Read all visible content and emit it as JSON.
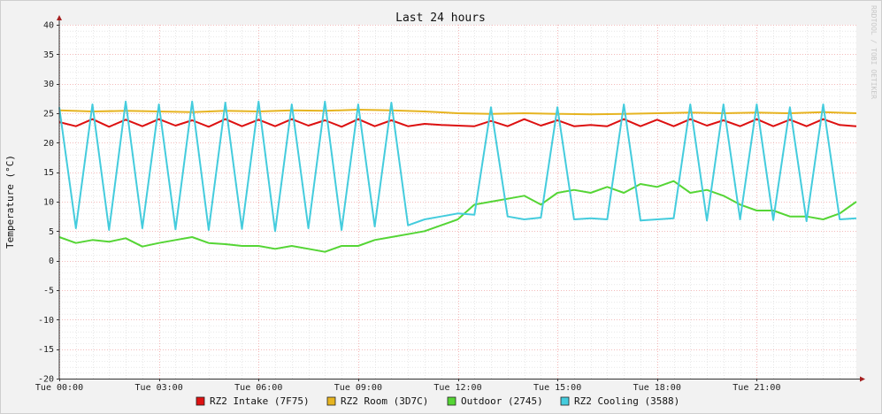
{
  "chart_data": {
    "type": "line",
    "title": "Last 24 hours",
    "ylabel": "Temperature (°C)",
    "xlabel": "",
    "watermark": "RRDTOOL / TOBI OETIKER",
    "x_range_hours": [
      0,
      24
    ],
    "ylim": [
      -20,
      40
    ],
    "y_ticks": [
      40,
      35,
      30,
      25,
      20,
      15,
      10,
      5,
      0,
      -5,
      -10,
      -15,
      -20
    ],
    "x_ticks": [
      {
        "hour": 0,
        "label": "Tue 00:00"
      },
      {
        "hour": 3,
        "label": "Tue 03:00"
      },
      {
        "hour": 6,
        "label": "Tue 06:00"
      },
      {
        "hour": 9,
        "label": "Tue 09:00"
      },
      {
        "hour": 12,
        "label": "Tue 12:00"
      },
      {
        "hour": 15,
        "label": "Tue 15:00"
      },
      {
        "hour": 18,
        "label": "Tue 18:00"
      },
      {
        "hour": 21,
        "label": "Tue 21:00"
      }
    ],
    "grid": true,
    "legend_position": "bottom",
    "colors": {
      "background": "#ffffff",
      "major_grid": "#f1a5a5",
      "minor_grid": "#d8d8d8",
      "axis": "#333333",
      "arrow": "#a52020"
    },
    "series": [
      {
        "name": "RZ2 Intake (7F75)",
        "color": "#dd1111",
        "x": [
          0.0,
          0.5,
          1.0,
          1.5,
          2.0,
          2.5,
          3.0,
          3.5,
          4.0,
          4.5,
          5.0,
          5.5,
          6.0,
          6.5,
          7.0,
          7.5,
          8.0,
          8.5,
          9.0,
          9.5,
          10.0,
          10.5,
          11.0,
          11.5,
          12.0,
          12.5,
          13.0,
          13.5,
          14.0,
          14.5,
          15.0,
          15.5,
          16.0,
          16.5,
          17.0,
          17.5,
          18.0,
          18.5,
          19.0,
          19.5,
          20.0,
          20.5,
          21.0,
          21.5,
          22.0,
          22.5,
          23.0,
          23.5,
          24.0
        ],
        "values": [
          23.5,
          22.8,
          24.0,
          22.7,
          23.9,
          22.8,
          24.0,
          22.9,
          23.8,
          22.7,
          24.0,
          22.8,
          23.9,
          22.8,
          24.0,
          22.9,
          23.8,
          22.7,
          24.0,
          22.8,
          23.8,
          22.8,
          23.2,
          23.0,
          22.9,
          22.8,
          23.7,
          22.8,
          24.0,
          22.9,
          23.8,
          22.8,
          23.0,
          22.8,
          24.0,
          22.8,
          23.9,
          22.8,
          24.0,
          22.9,
          23.8,
          22.8,
          24.0,
          22.8,
          23.9,
          22.8,
          24.0,
          23.0,
          22.8
        ]
      },
      {
        "name": "RZ2 Room (3D7C)",
        "color": "#e6b420",
        "x": [
          0.0,
          1.0,
          2.0,
          3.0,
          4.0,
          5.0,
          6.0,
          7.0,
          8.0,
          9.0,
          10.0,
          11.0,
          12.0,
          13.0,
          14.0,
          15.0,
          16.0,
          17.0,
          18.0,
          19.0,
          20.0,
          21.0,
          22.0,
          23.0,
          24.0
        ],
        "values": [
          25.5,
          25.3,
          25.4,
          25.3,
          25.2,
          25.4,
          25.3,
          25.5,
          25.4,
          25.6,
          25.5,
          25.3,
          25.0,
          24.9,
          25.0,
          24.9,
          24.8,
          24.9,
          25.0,
          25.1,
          25.0,
          25.1,
          25.0,
          25.2,
          25.0
        ]
      },
      {
        "name": "Outdoor (2745)",
        "color": "#55d535",
        "x": [
          0.0,
          0.5,
          1.0,
          1.5,
          2.0,
          2.5,
          3.0,
          3.5,
          4.0,
          4.5,
          5.0,
          5.5,
          6.0,
          6.5,
          7.0,
          7.5,
          8.0,
          8.5,
          9.0,
          9.5,
          10.0,
          10.5,
          11.0,
          11.5,
          12.0,
          12.5,
          13.0,
          13.5,
          14.0,
          14.5,
          15.0,
          15.5,
          16.0,
          16.5,
          17.0,
          17.5,
          18.0,
          18.5,
          19.0,
          19.5,
          20.0,
          20.5,
          21.0,
          21.5,
          22.0,
          22.5,
          23.0,
          23.5,
          24.0
        ],
        "values": [
          4.0,
          3.0,
          3.5,
          3.2,
          3.8,
          2.4,
          3.0,
          3.5,
          4.0,
          3.0,
          2.8,
          2.5,
          2.5,
          2.0,
          2.5,
          2.0,
          1.5,
          2.5,
          2.5,
          3.5,
          4.0,
          4.5,
          5.0,
          6.0,
          7.0,
          9.5,
          10.0,
          10.5,
          11.0,
          9.5,
          11.5,
          12.0,
          11.5,
          12.5,
          11.5,
          13.0,
          12.5,
          13.5,
          11.5,
          12.0,
          11.0,
          9.5,
          8.5,
          8.5,
          7.5,
          7.5,
          7.0,
          8.0,
          10.0
        ]
      },
      {
        "name": "RZ2 Cooling (3588)",
        "color": "#44ccdd",
        "x": [
          0.0,
          0.5,
          1.0,
          1.5,
          2.0,
          2.5,
          3.0,
          3.5,
          4.0,
          4.5,
          5.0,
          5.5,
          6.0,
          6.5,
          7.0,
          7.5,
          8.0,
          8.5,
          9.0,
          9.5,
          10.0,
          10.5,
          11.0,
          11.5,
          12.0,
          12.5,
          13.0,
          13.5,
          14.0,
          14.5,
          15.0,
          15.5,
          16.0,
          16.5,
          17.0,
          17.5,
          18.0,
          18.5,
          19.0,
          19.5,
          20.0,
          20.5,
          21.0,
          21.5,
          22.0,
          22.5,
          23.0,
          23.5,
          24.0
        ],
        "values": [
          26.0,
          5.5,
          26.5,
          5.2,
          27.0,
          5.5,
          26.5,
          5.3,
          27.0,
          5.2,
          26.8,
          5.4,
          27.0,
          5.0,
          26.5,
          5.5,
          27.0,
          5.2,
          26.5,
          5.8,
          26.8,
          6.0,
          7.0,
          7.5,
          8.0,
          7.8,
          26.0,
          7.5,
          7.0,
          7.3,
          26.0,
          7.0,
          7.2,
          7.0,
          26.5,
          6.8,
          7.0,
          7.2,
          26.5,
          6.8,
          26.5,
          7.0,
          26.5,
          6.9,
          26.0,
          6.7,
          26.5,
          7.0,
          7.2
        ]
      }
    ]
  }
}
